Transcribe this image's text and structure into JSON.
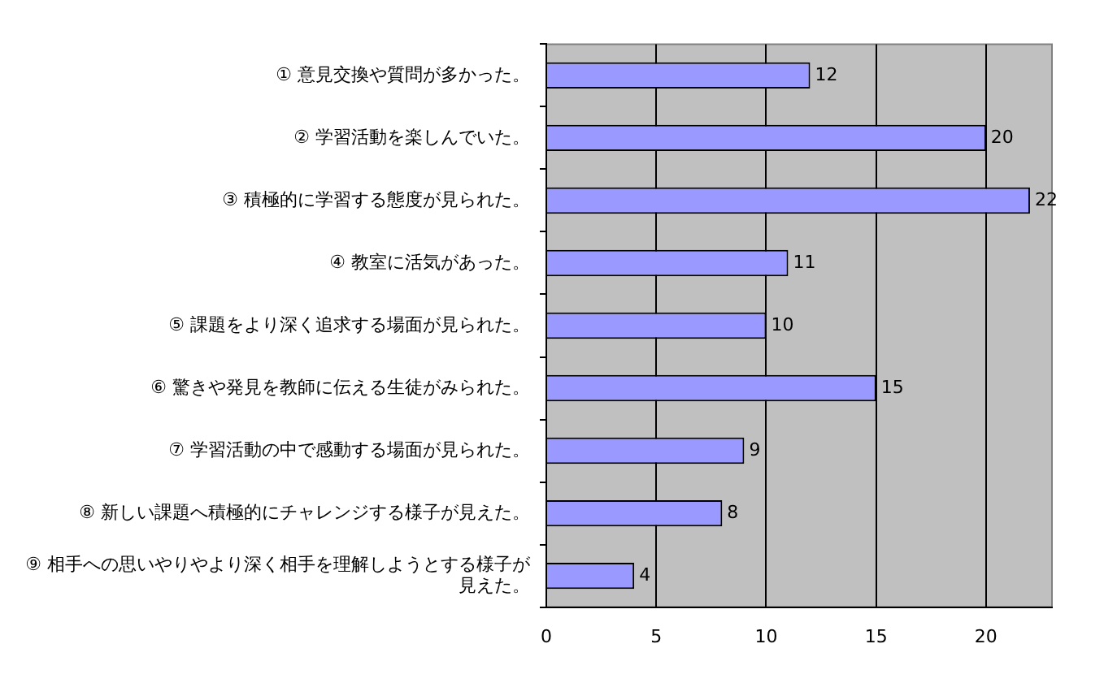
{
  "chart_data": {
    "type": "bar",
    "orientation": "horizontal",
    "categories": [
      "① 意見交換や質問が多かった。",
      "② 学習活動を楽しんでいた。",
      "③ 積極的に学習する態度が見られた。",
      "④ 教室に活気があった。",
      "⑤ 課題をより深く追求する場面が見られた。",
      "⑥ 驚きや発見を教師に伝える生徒がみられた。",
      "⑦ 学習活動の中で感動する場面が見られた。",
      "⑧ 新しい課題へ積極的にチャレンジする様子が見えた。",
      "⑨ 相手への思いやりやより深く相手を理解しようとする様子が見えた。"
    ],
    "values": [
      12,
      20,
      22,
      11,
      10,
      15,
      9,
      8,
      4
    ],
    "color": "#9999ff",
    "xlim": [
      0,
      23
    ],
    "xticks": [
      0,
      5,
      10,
      15,
      20
    ],
    "grid": "x",
    "data_labels": true,
    "legend": false
  }
}
